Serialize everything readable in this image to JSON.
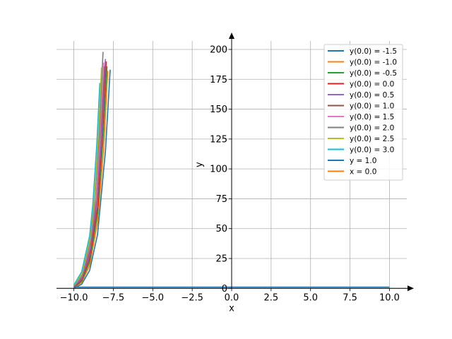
{
  "chart_data": {
    "type": "line",
    "xlabel": "x",
    "ylabel": "y",
    "xlim": [
      -11.1,
      11.1
    ],
    "ylim": [
      -1,
      213
    ],
    "grid": true,
    "legend_position": "top-right",
    "x_ticks": [
      -10.0,
      -7.5,
      -5.0,
      -2.5,
      0.0,
      2.5,
      5.0,
      7.5,
      10.0
    ],
    "x_tick_labels": [
      "−10.0",
      "−7.5",
      "−5.0",
      "−2.5",
      "0.0",
      "2.5",
      "5.0",
      "7.5",
      "10.0"
    ],
    "y_ticks": [
      0,
      25,
      50,
      75,
      100,
      125,
      150,
      175,
      200
    ],
    "y_tick_labels": [
      "0",
      "25",
      "50",
      "75",
      "100",
      "125",
      "150",
      "175",
      "200"
    ],
    "series": [
      {
        "name": "y(0.0) = -1.5",
        "color": "#1f77b4",
        "x": [
          -10.0,
          -9.5,
          -9.0,
          -8.5,
          -8.0,
          -7.7
        ],
        "y": [
          0.0,
          3.5,
          15.0,
          45.0,
          115.0,
          183.0
        ]
      },
      {
        "name": "y(0.0) = -1.0",
        "color": "#ff7f0e",
        "x": [
          -10.0,
          -9.5,
          -9.0,
          -8.5,
          -8.1,
          -7.85
        ],
        "y": [
          0.3,
          5.0,
          19.0,
          55.0,
          118.0,
          182.0
        ]
      },
      {
        "name": "y(0.0) = -0.5",
        "color": "#2ca02c",
        "x": [
          -10.0,
          -9.5,
          -9.0,
          -8.5,
          -8.15,
          -7.9
        ],
        "y": [
          0.6,
          6.0,
          22.0,
          62.0,
          125.0,
          186.0
        ]
      },
      {
        "name": "y(0.0) = 0.0",
        "color": "#d62728",
        "x": [
          -10.0,
          -9.5,
          -9.0,
          -8.5,
          -8.2,
          -7.95
        ],
        "y": [
          0.9,
          7.0,
          25.0,
          68.0,
          128.0,
          190.0
        ]
      },
      {
        "name": "y(0.0) = 0.5",
        "color": "#9467bd",
        "x": [
          -10.0,
          -9.5,
          -9.0,
          -8.6,
          -8.25,
          -8.0
        ],
        "y": [
          1.2,
          8.0,
          28.0,
          66.0,
          125.0,
          192.0
        ]
      },
      {
        "name": "y(0.0) = 1.0",
        "color": "#8c564b",
        "x": [
          -10.0,
          -9.5,
          -9.0,
          -8.6,
          -8.3,
          -8.05
        ],
        "y": [
          1.5,
          9.0,
          31.0,
          70.0,
          130.0,
          186.0
        ]
      },
      {
        "name": "y(0.0) = 1.5",
        "color": "#e377c2",
        "x": [
          -10.0,
          -9.5,
          -9.0,
          -8.6,
          -8.35,
          -8.1
        ],
        "y": [
          1.8,
          10.0,
          34.0,
          75.0,
          125.0,
          189.0
        ]
      },
      {
        "name": "y(0.0) = 2.0",
        "color": "#7f7f7f",
        "x": [
          -10.0,
          -9.5,
          -9.0,
          -8.7,
          -8.4,
          -8.15
        ],
        "y": [
          2.1,
          11.0,
          37.0,
          70.0,
          126.0,
          198.0
        ]
      },
      {
        "name": "y(0.0) = 2.5",
        "color": "#bcbd22",
        "x": [
          -10.0,
          -9.5,
          -9.0,
          -8.7,
          -8.45,
          -8.25
        ],
        "y": [
          2.4,
          12.0,
          40.0,
          75.0,
          128.0,
          185.0
        ]
      },
      {
        "name": "y(0.0) = 3.0",
        "color": "#17becf",
        "x": [
          -10.0,
          -9.5,
          -9.0,
          -8.8,
          -8.55,
          -8.35
        ],
        "y": [
          2.7,
          14.0,
          44.0,
          70.0,
          120.0,
          172.0
        ]
      },
      {
        "name": "y = 1.0",
        "color": "#1f77b4",
        "x": [
          -10.0,
          10.0
        ],
        "y": [
          1.0,
          1.0
        ]
      },
      {
        "name": "x = 0.0",
        "color": "#ff7f0e",
        "x": [
          0.0,
          0.0
        ],
        "y": [
          0.0,
          0.0
        ]
      }
    ]
  }
}
